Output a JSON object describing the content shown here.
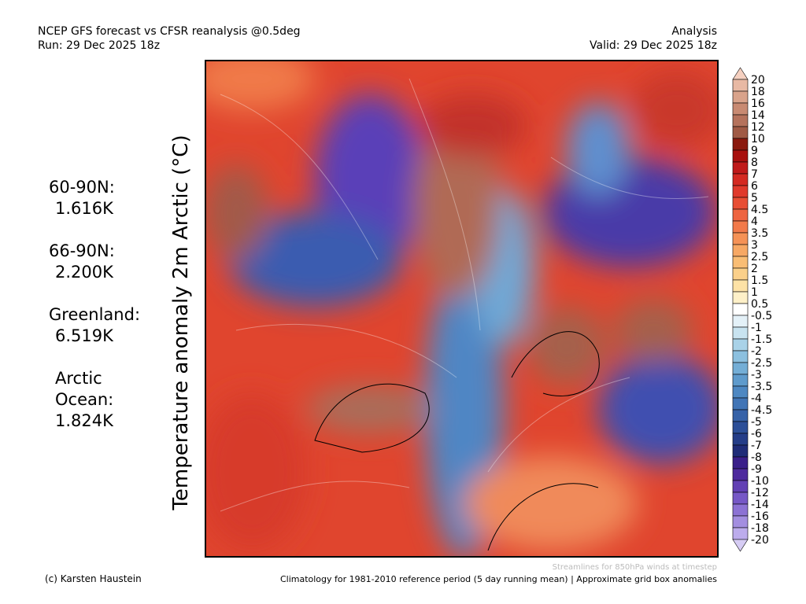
{
  "header": {
    "left": [
      "NCEP GFS forecast vs CFSR reanalysis @0.5deg",
      "Run: 29 Dec 2025 18z"
    ],
    "right": [
      "Analysis",
      "Valid: 29 Dec 2025 18z"
    ]
  },
  "axis_label": "Temperature anomaly 2m Arctic (°C)",
  "stats": [
    {
      "label": [
        "60-90N:"
      ],
      "value": "1.616K"
    },
    {
      "label": [
        "66-90N:"
      ],
      "value": "2.200K"
    },
    {
      "label": [
        "Greenland:"
      ],
      "value": "6.519K"
    },
    {
      "label": [
        "Arctic",
        "Ocean:"
      ],
      "value": "1.824K"
    }
  ],
  "colorbar": {
    "labels": [
      "20",
      "18",
      "16",
      "14",
      "12",
      "10",
      "9",
      "8",
      "7",
      "6",
      "5",
      "4.5",
      "4",
      "3.5",
      "3",
      "2.5",
      "2",
      "1.5",
      "1",
      "0.5",
      "-0.5",
      "-1",
      "-1.5",
      "-2",
      "-2.5",
      "-3",
      "-3.5",
      "-4",
      "-4.5",
      "-5",
      "-6",
      "-7",
      "-8",
      "-9",
      "-10",
      "-12",
      "-14",
      "-16",
      "-18",
      "-20"
    ],
    "colors": [
      "#f5d0c0",
      "#e8b9a4",
      "#d9a38b",
      "#c88a72",
      "#b5725c",
      "#a05a45",
      "#8b1a0e",
      "#a8100e",
      "#c01a1a",
      "#d42a22",
      "#e03a2c",
      "#e84e34",
      "#ee6440",
      "#f27a4a",
      "#f59256",
      "#f7a864",
      "#f9bd74",
      "#fbd08a",
      "#fde2a6",
      "#fef0c8",
      "#ffffff",
      "#e4f1f8",
      "#c8e3f0",
      "#a9d2e8",
      "#8cc0df",
      "#74aed6",
      "#5f9bcc",
      "#4e88c2",
      "#4175b6",
      "#3662a8",
      "#2c4f98",
      "#243d88",
      "#1f2c78",
      "#3a1f8a",
      "#4e2a9e",
      "#6240b4",
      "#7658c6",
      "#8c72d4",
      "#a38ee0",
      "#bcacec",
      "#d6ccf4"
    ]
  },
  "footer": {
    "credit": "(c) Karsten Haustein",
    "streamlines": "Streamlines for 850hPa winds at timestep",
    "climatology": "Climatology for 1981-2010 reference period (5 day running mean) | Approximate grid box anomalies"
  }
}
